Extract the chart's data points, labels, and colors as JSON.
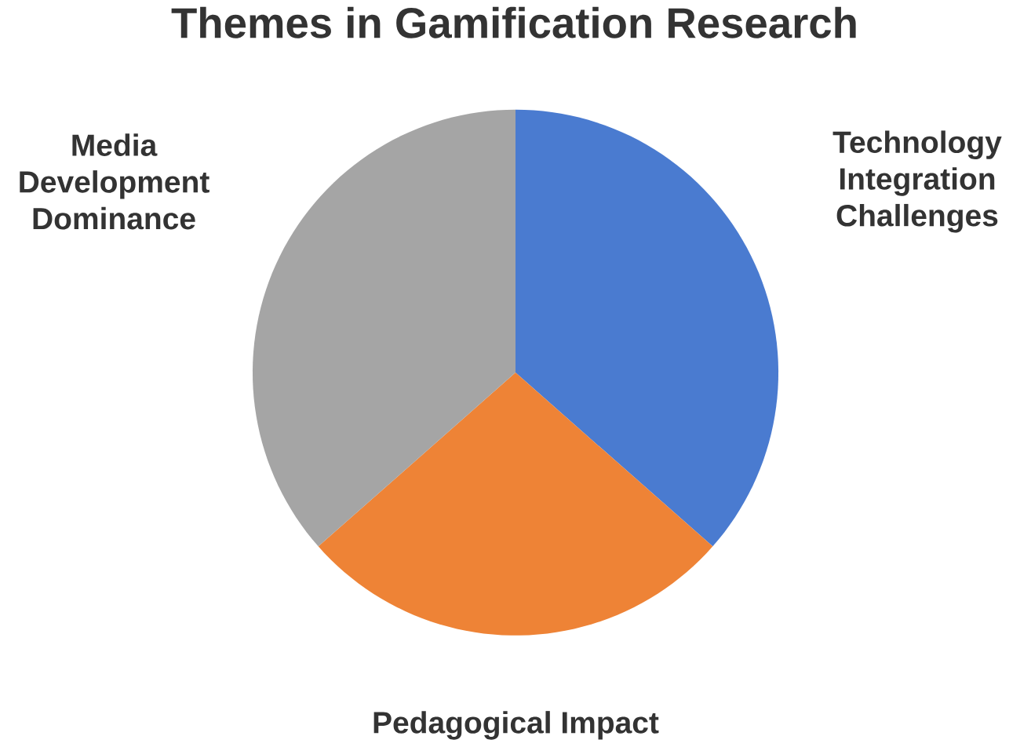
{
  "chart_data": {
    "type": "pie",
    "title": "Themes in Gamification Research",
    "categories": [
      "Technology Integration Challenges",
      "Pedagogical Impact",
      "Media Development Dominance"
    ],
    "values": [
      36.5,
      27,
      36.5
    ],
    "colors": [
      "#4a7bd0",
      "#ee8336",
      "#a5a5a5"
    ]
  }
}
